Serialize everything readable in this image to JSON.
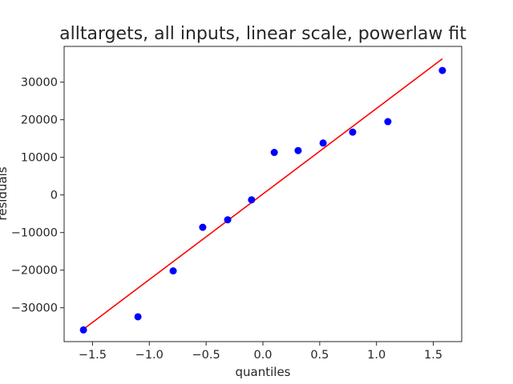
{
  "chart_data": {
    "type": "scatter",
    "title": "alltargets, all inputs, linear scale, powerlaw fit",
    "xlabel": "quantiles",
    "ylabel": "residuals",
    "xlim": [
      -1.75,
      1.75
    ],
    "ylim": [
      -39000,
      39500
    ],
    "x_ticks": [
      -1.5,
      -1.0,
      -0.5,
      0.0,
      0.5,
      1.0,
      1.5
    ],
    "x_tick_labels": [
      "−1.5",
      "−1.0",
      "−0.5",
      "0.0",
      "0.5",
      "1.0",
      "1.5"
    ],
    "y_ticks": [
      -30000,
      -20000,
      -10000,
      0,
      10000,
      20000,
      30000
    ],
    "y_tick_labels": [
      "−30000",
      "−20000",
      "−10000",
      "0",
      "10000",
      "20000",
      "30000"
    ],
    "grid": false,
    "series": [
      {
        "type": "scatter",
        "color": "#0000ff",
        "x": [
          -1.58,
          -1.1,
          -0.79,
          -0.53,
          -0.31,
          -0.1,
          0.1,
          0.31,
          0.53,
          0.79,
          1.1,
          1.58
        ],
        "y": [
          -35900,
          -32400,
          -20200,
          -8600,
          -6600,
          -1300,
          11300,
          11800,
          13800,
          16700,
          19500,
          33100
        ]
      },
      {
        "type": "line",
        "color": "#ff0000",
        "x": [
          -1.58,
          1.58
        ],
        "y": [
          -35700,
          36200
        ]
      }
    ]
  }
}
